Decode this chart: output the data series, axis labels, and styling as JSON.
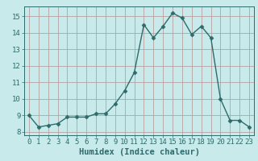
{
  "x": [
    0,
    1,
    2,
    3,
    4,
    5,
    6,
    7,
    8,
    9,
    10,
    11,
    12,
    13,
    14,
    15,
    16,
    17,
    18,
    19,
    20,
    21,
    22,
    23
  ],
  "y": [
    9.0,
    8.3,
    8.4,
    8.5,
    8.9,
    8.9,
    8.9,
    9.1,
    9.1,
    9.7,
    10.5,
    11.6,
    14.5,
    13.7,
    14.4,
    15.2,
    14.9,
    13.9,
    14.4,
    13.7,
    10.0,
    8.7,
    8.7,
    8.3
  ],
  "line_color": "#2d6b6b",
  "marker": "D",
  "marker_size": 2.5,
  "bg_color": "#c8eaea",
  "grid_major_color": "#b8a0a0",
  "grid_minor_color": "#d0b8b8",
  "xlabel": "Humidex (Indice chaleur)",
  "ylim": [
    7.8,
    15.6
  ],
  "xlim": [
    -0.5,
    23.5
  ],
  "yticks": [
    8,
    9,
    10,
    11,
    12,
    13,
    14,
    15
  ],
  "xticks": [
    0,
    1,
    2,
    3,
    4,
    5,
    6,
    7,
    8,
    9,
    10,
    11,
    12,
    13,
    14,
    15,
    16,
    17,
    18,
    19,
    20,
    21,
    22,
    23
  ],
  "tick_color": "#2d6b6b",
  "label_color": "#2d6b6b",
  "font_size": 6.5,
  "xlabel_fontsize": 7.5,
  "linewidth": 1.0
}
